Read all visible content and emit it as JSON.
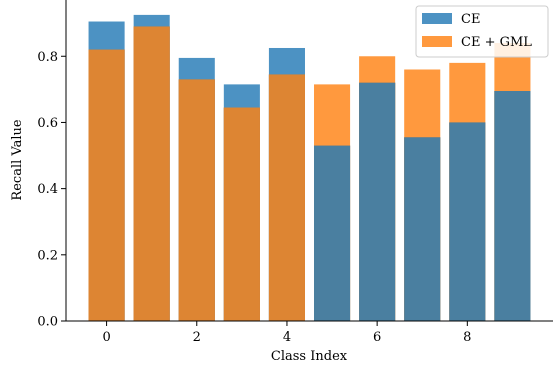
{
  "chart_data": {
    "type": "bar",
    "categories": [
      0,
      1,
      2,
      3,
      4,
      5,
      6,
      7,
      8,
      9
    ],
    "series": [
      {
        "name": "CE",
        "color": "#1f77b4",
        "values": [
          0.905,
          0.925,
          0.795,
          0.715,
          0.825,
          0.53,
          0.72,
          0.555,
          0.6,
          0.695
        ]
      },
      {
        "name": "CE + GML",
        "color": "#ff7f0e",
        "values": [
          0.82,
          0.89,
          0.73,
          0.645,
          0.745,
          0.715,
          0.8,
          0.76,
          0.78,
          0.84
        ]
      }
    ],
    "overlay": true,
    "xlabel": "Class Index",
    "ylabel": "Recall Value",
    "xticks": [
      0,
      2,
      4,
      6,
      8
    ],
    "yticks": [
      "0.0",
      "0.2",
      "0.4",
      "0.6",
      "0.8"
    ],
    "ylim": [
      0,
      0.97
    ],
    "xlim": [
      -0.9,
      9.9
    ],
    "legend": "top-right",
    "grid": false
  }
}
